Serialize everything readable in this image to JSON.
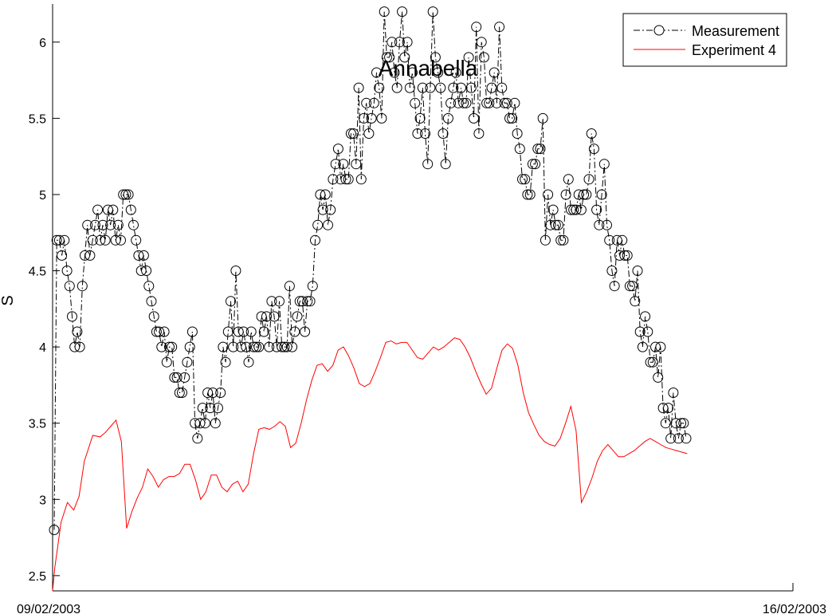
{
  "chart_data": {
    "type": "line",
    "title": "Annabella",
    "xlabel": "",
    "ylabel": "S",
    "x_tick_labels": [
      "09/02/2003",
      "16/02/2003"
    ],
    "xlim": [
      0,
      7
    ],
    "ylim": [
      2.4,
      6.25
    ],
    "y_ticks": [
      2.5,
      3,
      3.5,
      4,
      4.5,
      5,
      5.5,
      6
    ],
    "y_tick_labels": [
      "2.5",
      "3",
      "3.5",
      "4",
      "4.5",
      "5",
      "5.5",
      "6"
    ],
    "grid": false,
    "legend_position": "top-right",
    "colors": {
      "measurement": "#000000",
      "experiment": "#ff0000"
    },
    "series": [
      {
        "name": "Measurement",
        "style": "dash-dot line with circle markers",
        "values": [
          2.8,
          4.7,
          4.7,
          4.6,
          4.7,
          4.5,
          4.4,
          4.2,
          4.0,
          4.1,
          4.0,
          4.4,
          4.6,
          4.8,
          4.6,
          4.7,
          4.8,
          4.9,
          4.7,
          4.8,
          4.7,
          4.9,
          4.8,
          4.9,
          4.7,
          4.8,
          4.7,
          5.0,
          5.0,
          5.0,
          4.9,
          4.8,
          4.7,
          4.6,
          4.5,
          4.6,
          4.5,
          4.4,
          4.3,
          4.2,
          4.1,
          4.1,
          4.0,
          4.1,
          3.9,
          4.0,
          4.0,
          3.8,
          3.8,
          3.7,
          3.7,
          3.8,
          3.9,
          4.0,
          4.1,
          3.5,
          3.4,
          3.5,
          3.6,
          3.5,
          3.7,
          3.6,
          3.7,
          3.5,
          3.6,
          3.7,
          4.0,
          3.9,
          4.1,
          4.3,
          4.0,
          4.5,
          4.1,
          4.0,
          4.1,
          4.0,
          3.9,
          4.1,
          4.0,
          4.0,
          4.0,
          4.2,
          4.1,
          4.2,
          4.0,
          4.3,
          4.2,
          4.0,
          4.3,
          4.0,
          4.0,
          4.0,
          4.4,
          4.0,
          4.1,
          4.2,
          4.3,
          4.3,
          4.1,
          4.3,
          4.3,
          4.4,
          4.7,
          4.8,
          5.0,
          4.9,
          5.0,
          4.8,
          4.9,
          5.1,
          5.2,
          5.3,
          5.1,
          5.2,
          5.1,
          5.1,
          5.4,
          5.4,
          5.2,
          5.7,
          5.1,
          5.5,
          5.6,
          5.4,
          5.5,
          5.6,
          5.8,
          5.7,
          5.5,
          6.2,
          5.9,
          5.9,
          6.0,
          5.8,
          5.7,
          6.0,
          6.2,
          5.9,
          6.0,
          5.7,
          5.8,
          5.6,
          5.4,
          5.5,
          5.7,
          5.4,
          5.2,
          5.7,
          6.2,
          5.9,
          5.8,
          5.7,
          5.4,
          5.2,
          5.5,
          5.6,
          5.7,
          5.8,
          5.6,
          5.7,
          5.6,
          5.6,
          5.9,
          5.7,
          5.5,
          6.1,
          5.4,
          6.0,
          5.9,
          5.6,
          5.6,
          5.7,
          5.8,
          5.6,
          6.1,
          5.7,
          5.6,
          5.6,
          5.5,
          5.5,
          5.6,
          5.4,
          5.3,
          5.1,
          5.1,
          5.0,
          5.0,
          5.2,
          5.2,
          5.3,
          5.3,
          5.5,
          4.7,
          5.0,
          4.8,
          4.9,
          4.8,
          4.8,
          4.7,
          4.7,
          5.0,
          5.1,
          4.9,
          4.9,
          4.9,
          5.0,
          4.9,
          5.0,
          5.0,
          5.1,
          5.4,
          5.3,
          4.9,
          4.8,
          5.0,
          5.2,
          4.8,
          4.7,
          4.5,
          4.4,
          4.7,
          4.6,
          4.7,
          4.6,
          4.6,
          4.4,
          4.4,
          4.3,
          4.5,
          4.1,
          4.0,
          4.2,
          4.1,
          3.9,
          3.9,
          4.0,
          3.8,
          4.0,
          3.6,
          3.5,
          3.6,
          3.4,
          3.7,
          3.5,
          3.4,
          3.5,
          3.5,
          3.4
        ]
      },
      {
        "name": "Experiment 4",
        "style": "solid line",
        "x": [
          0,
          0.02,
          0.08,
          0.14,
          0.2,
          0.25,
          0.3,
          0.38,
          0.45,
          0.5,
          0.55,
          0.6,
          0.65,
          0.7,
          0.75,
          0.8,
          0.85,
          0.9,
          0.95,
          1.0,
          1.05,
          1.1,
          1.15,
          1.2,
          1.25,
          1.3,
          1.35,
          1.4,
          1.45,
          1.5,
          1.55,
          1.6,
          1.65,
          1.7,
          1.75,
          1.8,
          1.85,
          1.9,
          1.95,
          2.0,
          2.05,
          2.1,
          2.15,
          2.2,
          2.25,
          2.3,
          2.35,
          2.4,
          2.45,
          2.5,
          2.55,
          2.6,
          2.65,
          2.7,
          2.75,
          2.8,
          2.85,
          2.9,
          2.95,
          3.0,
          3.05,
          3.1,
          3.15,
          3.2,
          3.25,
          3.3,
          3.35,
          3.4,
          3.45,
          3.5,
          3.55,
          3.6,
          3.65,
          3.7,
          3.75,
          3.8,
          3.85,
          3.9,
          3.95,
          4.0,
          4.05,
          4.1,
          4.15,
          4.2,
          4.25,
          4.3,
          4.35,
          4.4,
          4.45,
          4.5,
          4.55,
          4.6,
          4.65,
          4.7,
          4.75,
          4.8,
          4.85,
          4.9,
          4.95,
          5.0,
          5.05,
          5.1,
          5.15,
          5.2,
          5.25,
          5.3,
          5.35,
          5.4,
          5.45,
          5.5,
          5.55,
          5.6,
          5.65,
          5.7,
          5.75,
          5.8,
          5.85,
          5.9,
          5.95,
          6.0
        ],
        "values": [
          2.4,
          2.55,
          2.85,
          2.98,
          2.93,
          3.02,
          3.25,
          3.42,
          3.41,
          3.44,
          3.48,
          3.52,
          3.38,
          2.81,
          2.92,
          3.01,
          3.08,
          3.2,
          3.15,
          3.08,
          3.13,
          3.15,
          3.15,
          3.17,
          3.23,
          3.23,
          3.13,
          3.0,
          3.05,
          3.16,
          3.16,
          3.08,
          3.05,
          3.1,
          3.12,
          3.05,
          3.1,
          3.3,
          3.46,
          3.47,
          3.46,
          3.48,
          3.51,
          3.48,
          3.34,
          3.37,
          3.5,
          3.65,
          3.78,
          3.88,
          3.89,
          3.84,
          3.88,
          3.98,
          4.0,
          3.94,
          3.86,
          3.76,
          3.74,
          3.76,
          3.84,
          3.93,
          4.03,
          4.04,
          4.02,
          4.03,
          4.03,
          3.98,
          3.93,
          3.92,
          3.96,
          4.0,
          3.98,
          4.0,
          4.03,
          4.06,
          4.05,
          4.0,
          3.93,
          3.84,
          3.76,
          3.69,
          3.73,
          3.86,
          3.98,
          4.02,
          3.99,
          3.88,
          3.7,
          3.57,
          3.49,
          3.42,
          3.38,
          3.36,
          3.35,
          3.4,
          3.5,
          3.61,
          3.45,
          2.98,
          3.05,
          3.14,
          3.25,
          3.32,
          3.36,
          3.32,
          3.28,
          3.28,
          3.3,
          3.32,
          3.35,
          3.38,
          3.4,
          3.38,
          3.36,
          3.34,
          3.33,
          3.32,
          3.31,
          3.3
        ]
      }
    ]
  }
}
